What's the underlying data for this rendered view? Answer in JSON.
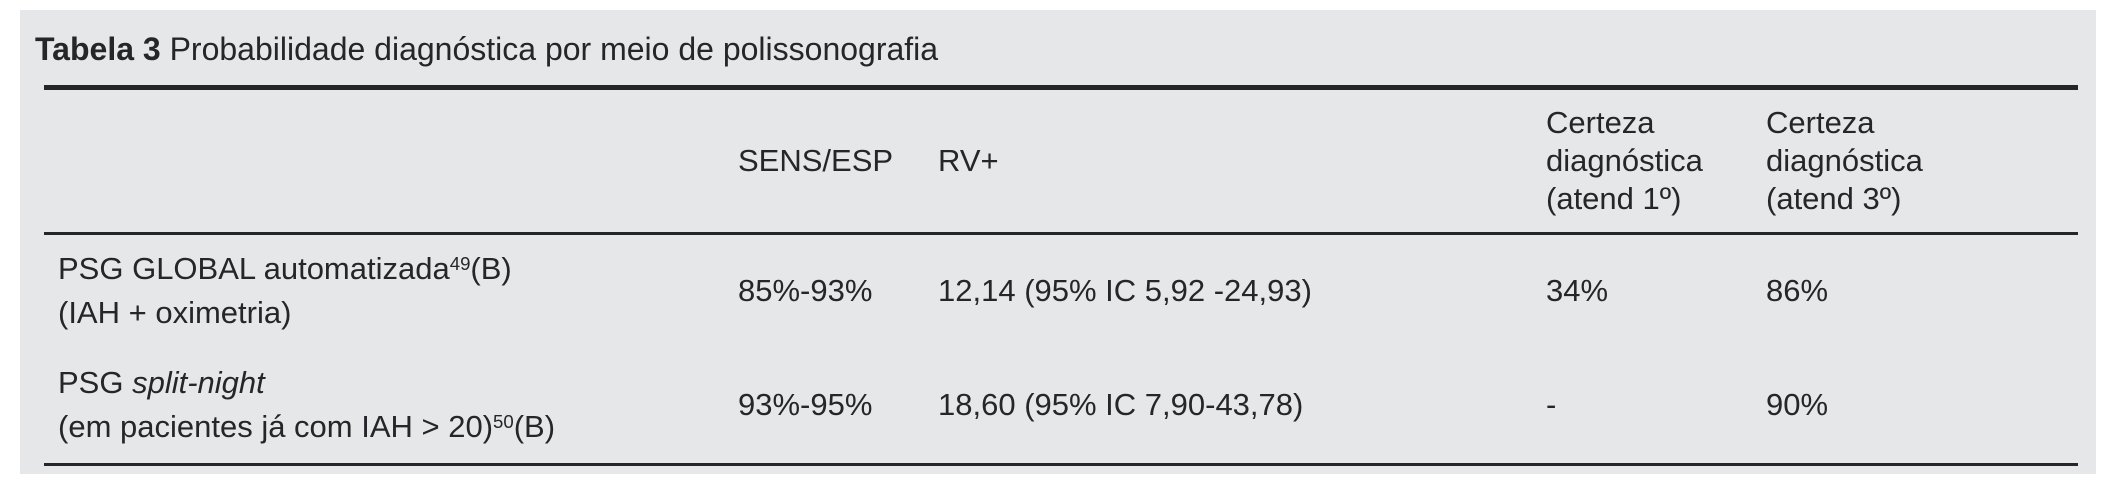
{
  "caption": {
    "label": "Tabela 3",
    "text": " Probabilidade diagnóstica por meio de polissonografia"
  },
  "columns": {
    "method": "",
    "sens_esp": "SENS/ESP",
    "rv_plus": "RV+",
    "certeza_1": "Certeza diagnóstica (atend 1º)",
    "certeza_3": "Certeza diagnóstica (atend 3º)"
  },
  "rows": [
    {
      "name_line1": "PSG GLOBAL automatizada",
      "name_line1_sup": "49",
      "name_line1_after": "(B)",
      "name_line2": "(IAH + oximetria)",
      "sens_esp": "85%-93%",
      "rv_plus": "12,14 (95% IC 5,92 -24,93)",
      "certeza_1": "34%",
      "certeza_3": "86%"
    },
    {
      "name_line1": "PSG ",
      "name_line1_italic": "split-night",
      "name_line2": "(em pacientes já com IAH > 20)",
      "name_line2_sup": "50",
      "name_line2_after": "(B)",
      "sens_esp": "93%-95%",
      "rv_plus": "18,60 (95% IC 7,90-43,78)",
      "certeza_1": "-",
      "certeza_3": "90%"
    }
  ]
}
